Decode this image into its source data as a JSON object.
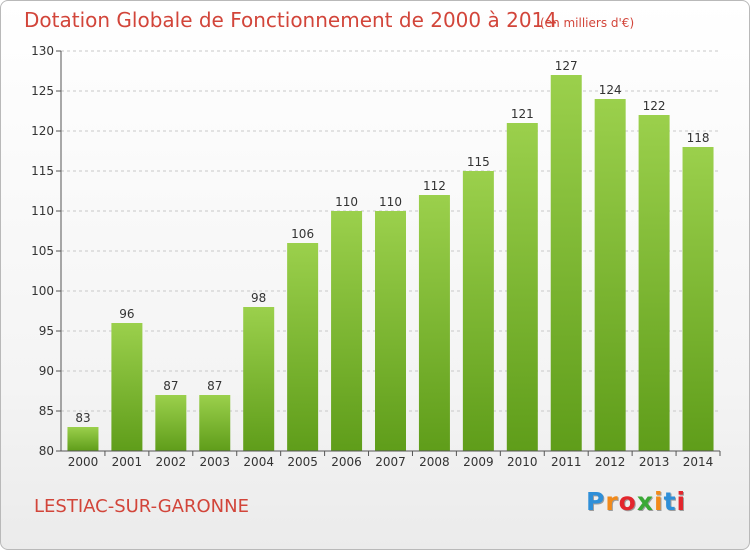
{
  "header": {
    "title": "Dotation Globale de Fonctionnement de 2000 à 2014",
    "unit": "(en milliers d'€)"
  },
  "footer": {
    "commune": "LESTIAC-SUR-GARONNE",
    "brand_letters": [
      "P",
      "r",
      "o",
      "x",
      "i",
      "t",
      "i"
    ],
    "brand_colors": [
      "#2f8fd8",
      "#f28a1a",
      "#e3262d",
      "#3aa935",
      "#f28a1a",
      "#2f8fd8",
      "#e3262d"
    ]
  },
  "colors": {
    "bar_light": "#9bd04c",
    "bar_dark": "#5f9d1a",
    "grid": "#c8c8c8",
    "axis": "#555555",
    "accent_text": "#d2453a"
  },
  "chart_data": {
    "type": "bar",
    "title": "Dotation Globale de Fonctionnement de 2000 à 2014",
    "subtitle": "(en milliers d'€)",
    "xlabel": "",
    "ylabel": "",
    "categories": [
      "2000",
      "2001",
      "2002",
      "2003",
      "2004",
      "2005",
      "2006",
      "2007",
      "2008",
      "2009",
      "2010",
      "2011",
      "2012",
      "2013",
      "2014"
    ],
    "values": [
      83,
      96,
      87,
      87,
      98,
      106,
      110,
      110,
      112,
      115,
      121,
      127,
      124,
      122,
      118
    ],
    "ylim": [
      80,
      130
    ],
    "yticks": [
      80,
      85,
      90,
      95,
      100,
      105,
      110,
      115,
      120,
      125,
      130
    ],
    "grid": true,
    "legend": "none"
  }
}
